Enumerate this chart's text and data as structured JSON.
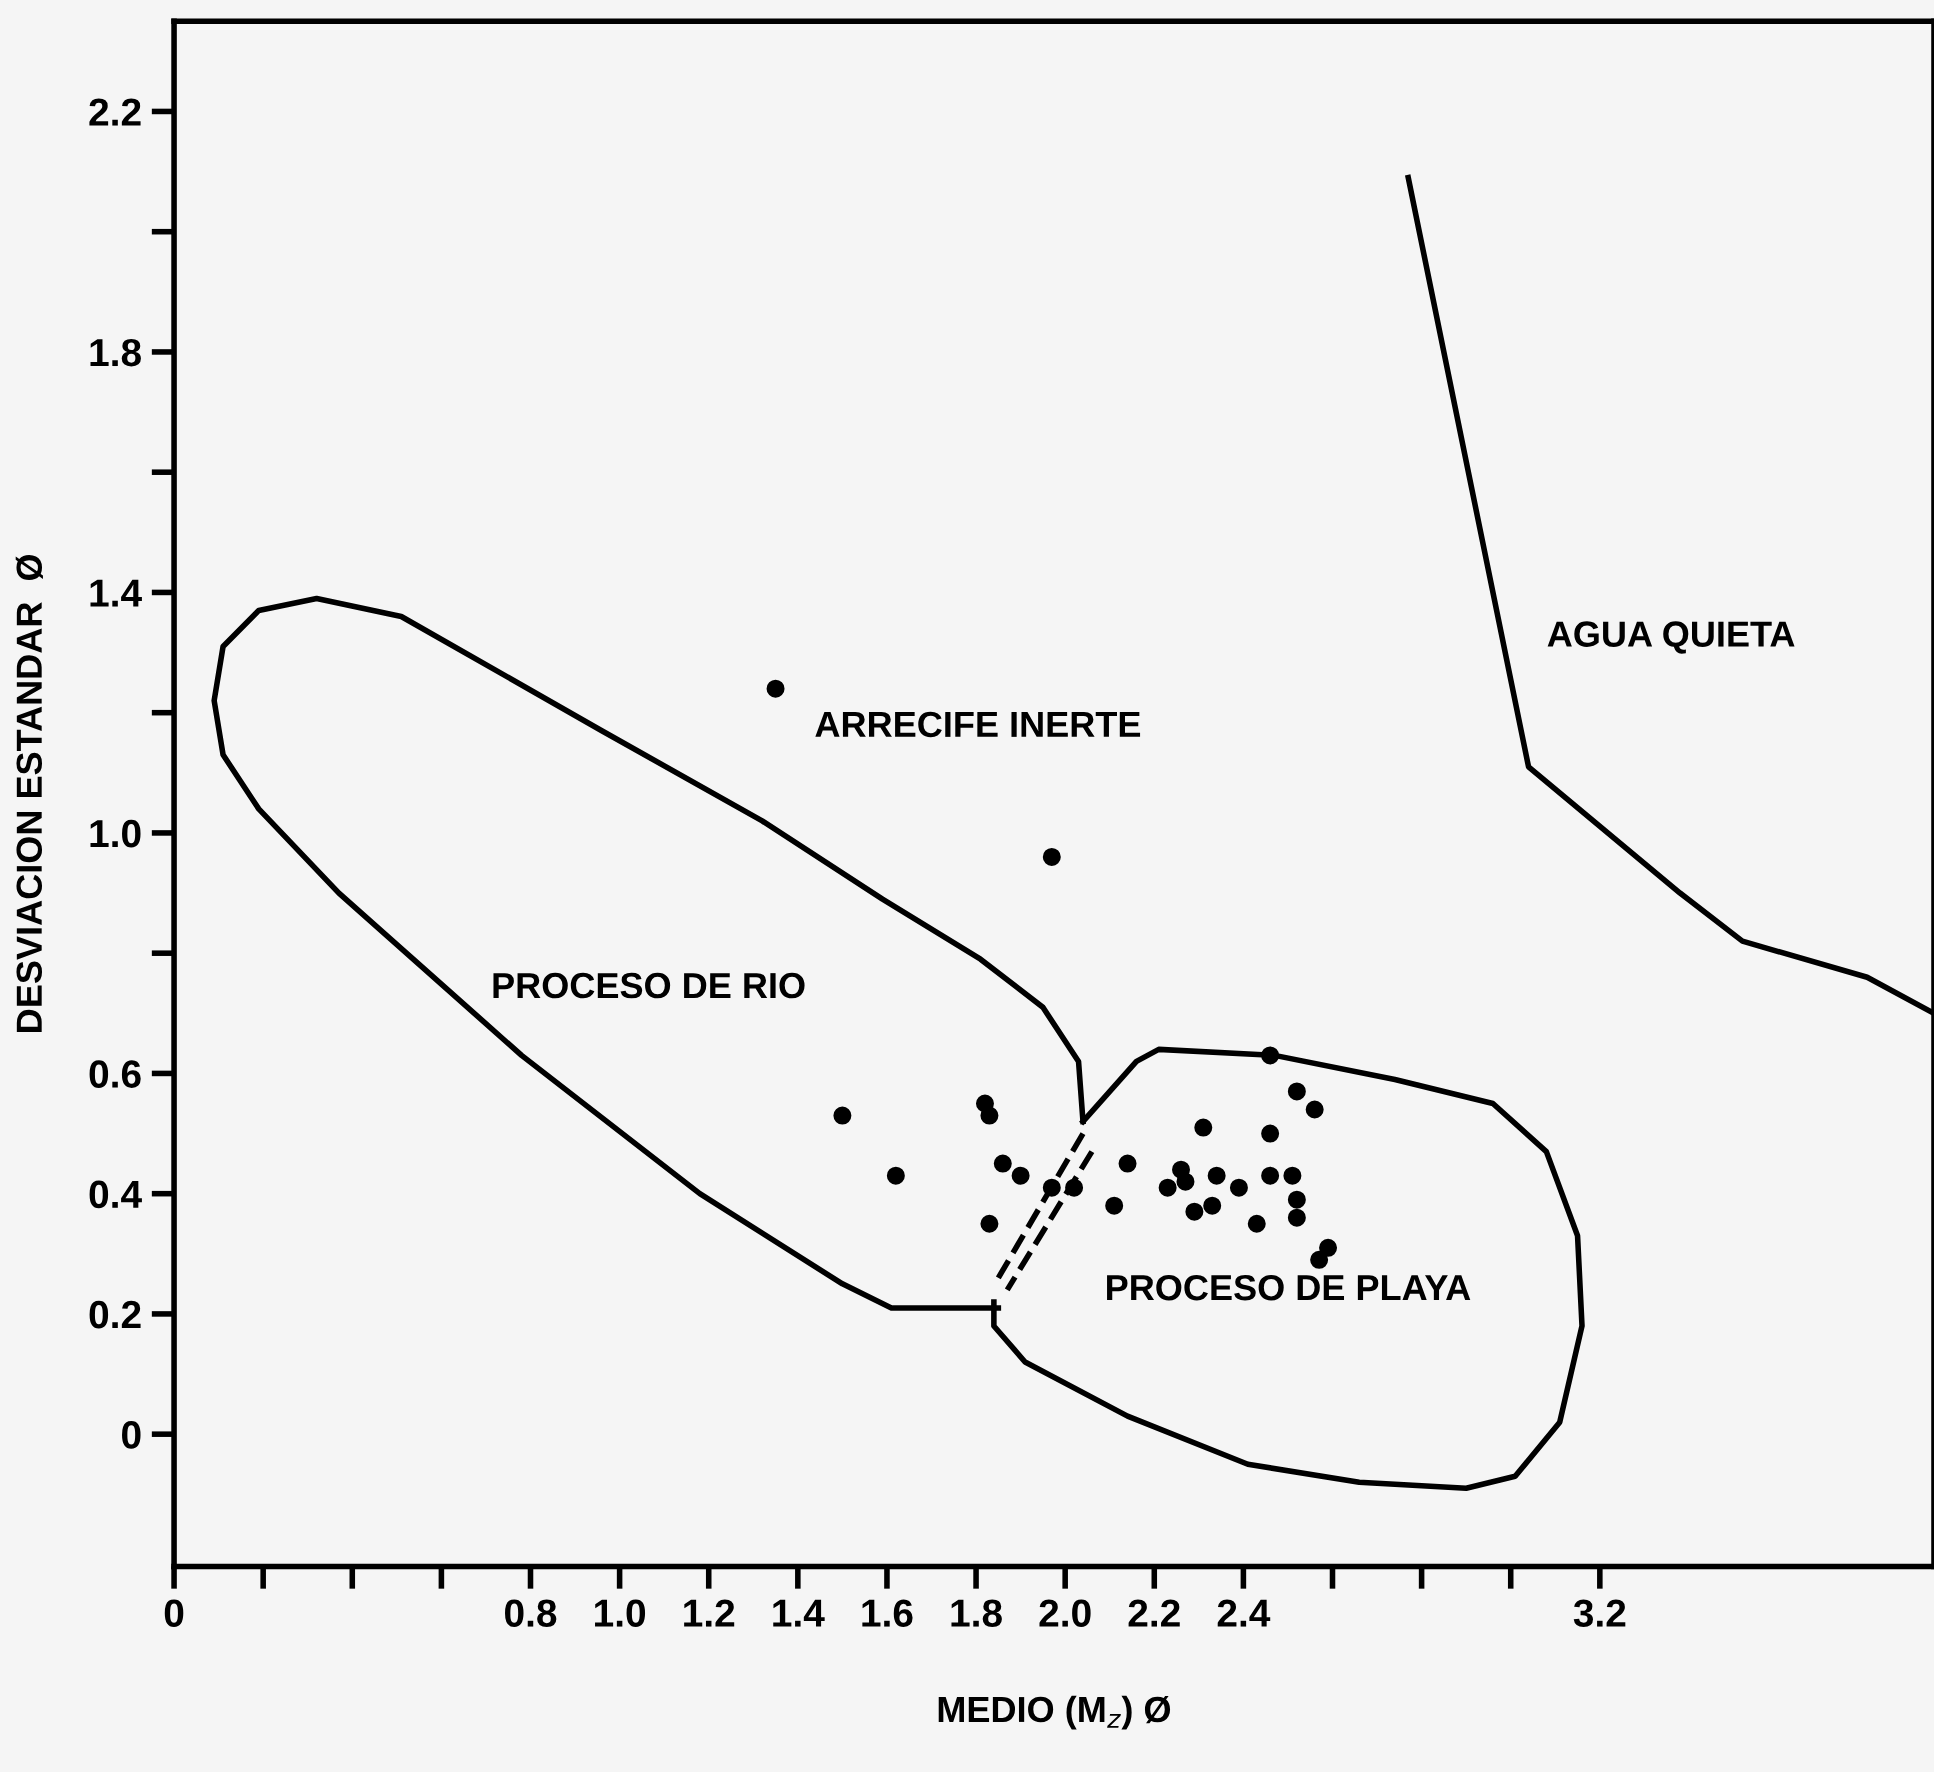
{
  "chart_data": {
    "type": "scatter",
    "xlabel": "MEDIO (M$_{z}$) Ø",
    "ylabel": "DESVIACION ESTANDAR  Ø",
    "xlim": [
      0,
      3.95
    ],
    "ylim": [
      -0.22,
      2.35
    ],
    "xticks": [
      0,
      {
        "value": 0.2,
        "label": null
      },
      {
        "value": 0.4,
        "label": null
      },
      {
        "value": 0.6,
        "label": null
      },
      {
        "value": 0.8,
        "label": "0.8"
      },
      {
        "value": 1.0,
        "label": "1.0"
      },
      {
        "value": 1.2,
        "label": "1.2"
      },
      {
        "value": 1.4,
        "label": "1.4"
      },
      {
        "value": 1.6,
        "label": "1.6"
      },
      {
        "value": 1.8,
        "label": "1.8"
      },
      {
        "value": 2.0,
        "label": "2.0"
      },
      {
        "value": 2.2,
        "label": "2.2"
      },
      {
        "value": 2.4,
        "label": "2.4"
      },
      {
        "value": 2.6,
        "label": null
      },
      {
        "value": 2.8,
        "label": null
      },
      {
        "value": 3.0,
        "label": null
      },
      {
        "value": 3.2,
        "label": "3.2"
      }
    ],
    "yticks": [
      0,
      0.2,
      0.4,
      0.6,
      {
        "value": 0.8,
        "label": null
      },
      {
        "value": 1.0,
        "label": "1.0"
      },
      {
        "value": 1.2,
        "label": null
      },
      1.4,
      {
        "value": 1.6,
        "label": null
      },
      1.8,
      {
        "value": 2.0,
        "label": null
      },
      2.2
    ],
    "grid": false,
    "legend": false,
    "series": [
      {
        "name": "ARRECIFE INERTE",
        "color": "#000000",
        "marker": "circle",
        "x": [
          1.35
        ],
        "values": [
          1.24
        ]
      },
      {
        "color": "#000000",
        "marker": "circle",
        "x": [
          1.97,
          1.5,
          1.62,
          1.82,
          1.83,
          1.86,
          1.9,
          1.83,
          1.97,
          2.02,
          2.14,
          2.11,
          2.31,
          2.26,
          2.23,
          2.27,
          2.34,
          2.29,
          2.33,
          2.39,
          2.46,
          2.52,
          2.56,
          2.46,
          2.46,
          2.51,
          2.52,
          2.52,
          2.43,
          2.59,
          2.57
        ],
        "values": [
          0.96,
          0.53,
          0.43,
          0.55,
          0.53,
          0.45,
          0.43,
          0.35,
          0.41,
          0.41,
          0.45,
          0.38,
          0.51,
          0.44,
          0.41,
          0.42,
          0.43,
          0.37,
          0.38,
          0.41,
          0.63,
          0.57,
          0.54,
          0.5,
          0.43,
          0.43,
          0.39,
          0.36,
          0.35,
          0.31,
          0.29
        ]
      },
      {
        "type": "line",
        "name": "PROCESO DE RIO",
        "color": "#000000",
        "marker": "none",
        "line_style": "solid",
        "x": [
          2.04,
          2.03,
          1.95,
          1.81,
          1.59,
          1.32,
          0.96,
          0.51,
          0.32,
          0.19,
          0.11,
          0.09,
          0.11,
          0.19,
          0.37,
          0.78,
          1.18,
          1.5,
          1.61,
          1.72,
          1.85
        ],
        "values": [
          0.52,
          0.62,
          0.71,
          0.79,
          0.89,
          1.02,
          1.17,
          1.36,
          1.39,
          1.37,
          1.31,
          1.22,
          1.13,
          1.04,
          0.9,
          0.63,
          0.4,
          0.25,
          0.21,
          0.21,
          0.21
        ]
      },
      {
        "type": "line",
        "name": "PROCESO DE PLAYA",
        "color": "#000000",
        "marker": "none",
        "line_style": "solid",
        "x": [
          1.84,
          1.84,
          1.91,
          2.14,
          2.41,
          2.66,
          2.9,
          3.01,
          3.11,
          3.16,
          3.15,
          3.08,
          2.96,
          2.74,
          2.47,
          2.21,
          2.16,
          2.04
        ],
        "values": [
          0.22,
          0.18,
          0.12,
          0.03,
          -0.05,
          -0.08,
          -0.09,
          -0.07,
          0.02,
          0.18,
          0.33,
          0.47,
          0.55,
          0.59,
          0.63,
          0.64,
          0.62,
          0.52
        ]
      },
      {
        "type": "line",
        "color": "#000000",
        "marker": "none",
        "line_style": "dashed",
        "x": [
          2.04,
          1.85
        ],
        "values": [
          0.5,
          0.26
        ]
      },
      {
        "type": "line",
        "color": "#000000",
        "marker": "none",
        "line_style": "dashed",
        "x": [
          2.06,
          1.87
        ],
        "values": [
          0.47,
          0.24
        ]
      },
      {
        "type": "line",
        "name": "AGUA QUIETA",
        "color": "#000000",
        "marker": "none",
        "line_style": "solid",
        "x": [
          2.77,
          3.04,
          3.38,
          3.52,
          3.8,
          3.95
        ],
        "values": [
          2.09,
          1.11,
          0.9,
          0.82,
          0.76,
          0.7
        ]
      }
    ]
  }
}
